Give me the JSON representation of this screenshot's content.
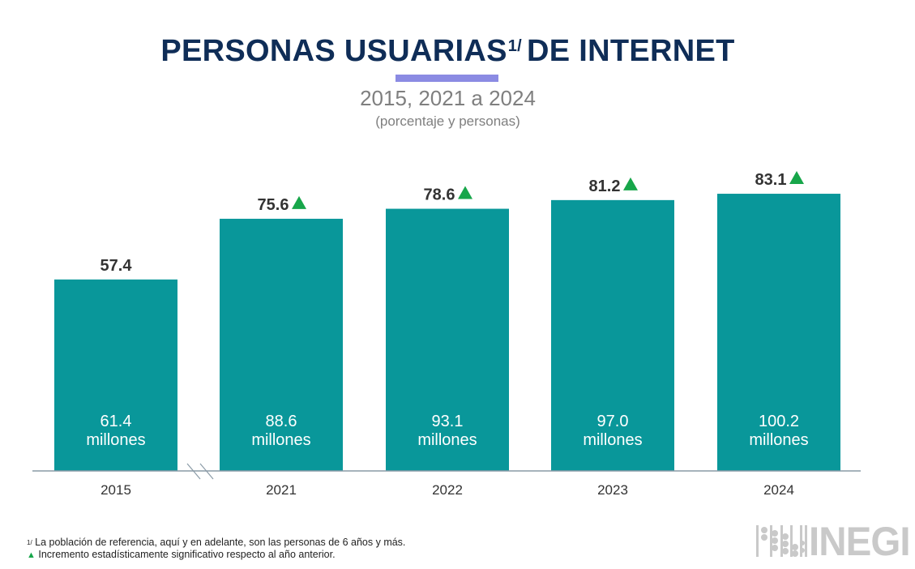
{
  "header": {
    "title_main": "PERSONAS USUARIAS",
    "title_sup": "1/",
    "title_rest": "DE INTERNET",
    "subtitle": "2015, 2021 a 2024",
    "subnote": "(porcentaje y personas)"
  },
  "colors": {
    "title": "#0f2d57",
    "accent_rule": "#8b8be3",
    "bar": "#09979a",
    "significant_marker": "#17a64a",
    "axis": "#8a9aa6"
  },
  "chart_data": {
    "type": "bar",
    "title": "PERSONAS USUARIAS DE INTERNET",
    "subtitle": "2015, 2021 a 2024 (porcentaje y personas)",
    "xlabel": "",
    "ylabel": "",
    "ylim": [
      0,
      100
    ],
    "grid": false,
    "axis_break_between": [
      "2015",
      "2021"
    ],
    "categories": [
      "2015",
      "2021",
      "2022",
      "2023",
      "2024"
    ],
    "series": [
      {
        "name": "Porcentaje",
        "values": [
          57.4,
          75.6,
          78.6,
          81.2,
          83.1
        ]
      },
      {
        "name": "Personas (millones)",
        "values": [
          61.4,
          88.6,
          93.1,
          97.0,
          100.2
        ]
      }
    ],
    "value_labels": [
      "57.4",
      "75.6",
      "78.6",
      "81.2",
      "83.1"
    ],
    "inner_labels": [
      {
        "number": "61.4",
        "unit": "millones"
      },
      {
        "number": "88.6",
        "unit": "millones"
      },
      {
        "number": "93.1",
        "unit": "millones"
      },
      {
        "number": "97.0",
        "unit": "millones"
      },
      {
        "number": "100.2",
        "unit": "millones"
      }
    ],
    "significant_increase": [
      false,
      true,
      true,
      true,
      true
    ]
  },
  "footnotes": {
    "note1_sup": "1/",
    "note1": "La población de referencia, aquí y en adelante, son las personas de 6 años y más.",
    "note2_marker": "▲",
    "note2": "Incremento estadísticamente significativo respecto al año anterior."
  },
  "logo": {
    "text": "INEGI",
    "icon": "abacus-icon"
  }
}
